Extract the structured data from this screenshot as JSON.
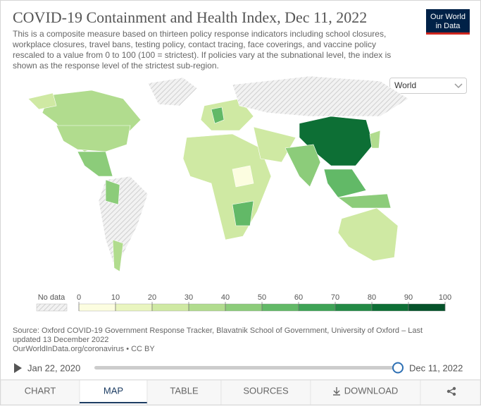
{
  "header": {
    "title": "COVID-19 Containment and Health Index, Dec 11, 2022",
    "subtitle_lines": [
      "This is a composite measure based on thirteen policy response indicators including school closures,",
      "workplace closures, travel bans, testing policy, contact tracing, face coverings, and vaccine policy",
      "rescaled to a value from 0 to 100 (100 = strictest). If policies vary at the subnational level, the index is",
      "shown as the response level of the strictest sub-region."
    ],
    "logo_lines": [
      "Our World",
      "in Data"
    ]
  },
  "region_select": "World",
  "legend": {
    "no_data_label": "No data",
    "ticks": [
      0,
      10,
      20,
      30,
      40,
      50,
      60,
      70,
      80,
      90,
      100
    ],
    "colors": [
      "#fcfde0",
      "#e9f5bf",
      "#cfe9a3",
      "#b1dc8e",
      "#8ccc7a",
      "#62b967",
      "#3ea356",
      "#238a45",
      "#0d6f35",
      "#05522a"
    ]
  },
  "source_lines": [
    "Source: Oxford COVID-19 Government Response Tracker, Blavatnik School of Government, University of Oxford – Last",
    "updated 13 December 2022",
    "OurWorldInData.org/coronavirus • CC BY"
  ],
  "timeline": {
    "start": "Jan 22, 2020",
    "end": "Dec 11, 2022"
  },
  "tabs": [
    "CHART",
    "MAP",
    "TABLE",
    "SOURCES",
    "DOWNLOAD"
  ]
}
